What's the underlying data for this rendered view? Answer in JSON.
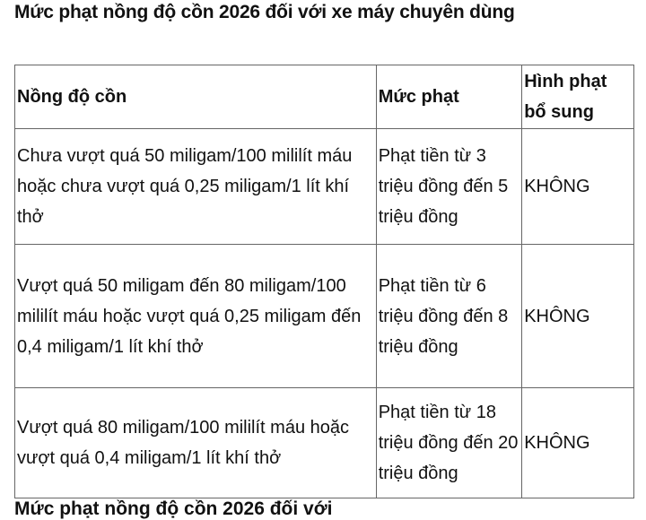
{
  "title": "Mức phạt nồng độ cồn 2026 đối với xe máy chuyên dùng",
  "table": {
    "headers": [
      "Nồng độ cồn",
      "Mức phạt",
      "Hình phạt bổ sung"
    ],
    "rows": [
      [
        "Chưa vượt quá 50 miligam/100 mililít máu hoặc chưa vượt quá 0,25 miligam/1 lít khí thở",
        "Phạt tiền từ 3 triệu đồng đến 5 triệu đồng",
        "KHÔNG"
      ],
      [
        "Vượt quá 50 miligam đến 80 miligam/100 mililít máu hoặc vượt quá 0,25 miligam đến 0,4 miligam/1 lít khí thở",
        "Phạt tiền từ 6 triệu đồng đến 8 triệu đồng",
        "KHÔNG"
      ],
      [
        "Vượt quá 80 miligam/100 mililít máu hoặc vượt quá 0,4 miligam/1 lít khí thở",
        "Phạt tiền từ 18 triệu đồng đến 20 triệu đồng",
        "KHÔNG"
      ]
    ]
  },
  "next_heading": "Mức phạt nồng độ cồn 2026 đối với"
}
